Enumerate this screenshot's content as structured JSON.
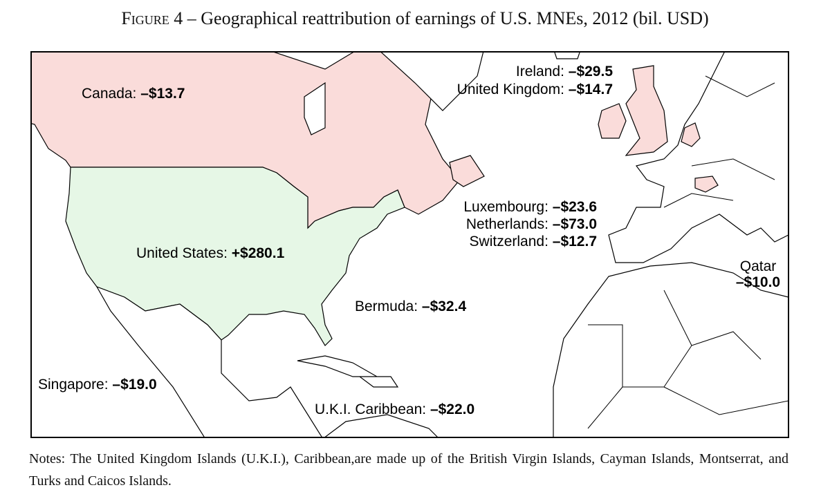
{
  "title": {
    "label": "Figure 4",
    "text": "– Geographical reattribution of earnings of U.S. MNEs, 2012 (bil. USD)"
  },
  "labels": [
    {
      "name": "Canada:",
      "value": "–$13.7"
    },
    {
      "name": "Ireland:",
      "value": "–$29.5"
    },
    {
      "name": "United Kingdom:",
      "value": "–$14.7"
    },
    {
      "name": "Luxembourg:",
      "value": "–$23.6"
    },
    {
      "name": "Netherlands:",
      "value": "–$73.0"
    },
    {
      "name": "Switzerland:",
      "value": "–$12.7"
    },
    {
      "name": "United States:",
      "value": "+$280.1"
    },
    {
      "name": "Qatar",
      "value": "–$10.0"
    },
    {
      "name": "Bermuda:",
      "value": "–$32.4"
    },
    {
      "name": "Singapore:",
      "value": "–$19.0"
    },
    {
      "name": "U.K.I. Caribbean:",
      "value": "–$22.0"
    }
  ],
  "notes": "Notes: The United Kingdom Islands (U.K.I.), Caribbean,are made up of the British Virgin Islands, Cayman Islands, Montserrat, and Turks and Caicos Islands."
}
